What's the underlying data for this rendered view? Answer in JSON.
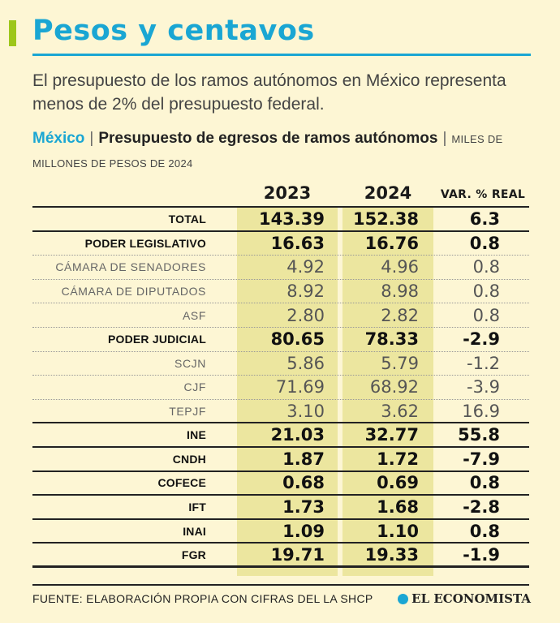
{
  "header": {
    "title": "Pesos y centavos",
    "subtitle": "El presupuesto de los ramos autónomos en México representa menos de 2% del presupuesto federal."
  },
  "chart_data": {
    "type": "table",
    "country": "México",
    "title": "Presupuesto de egresos de ramos autónomos",
    "units": "MILES DE MILLONES DE PESOS DE 2024",
    "columns": [
      "2023",
      "2024",
      "VAR. % REAL"
    ],
    "rows": [
      {
        "label": "TOTAL",
        "v2023": "143.39",
        "v2024": "152.38",
        "var": "6.3"
      },
      {
        "label": "PODER LEGISLATIVO",
        "v2023": "16.63",
        "v2024": "16.76",
        "var": "0.8"
      },
      {
        "label": "CÁMARA DE SENADORES",
        "v2023": "4.92",
        "v2024": "4.96",
        "var": "0.8"
      },
      {
        "label": "CÁMARA DE DIPUTADOS",
        "v2023": "8.92",
        "v2024": "8.98",
        "var": "0.8"
      },
      {
        "label": "ASF",
        "v2023": "2.80",
        "v2024": "2.82",
        "var": "0.8"
      },
      {
        "label": "PODER JUDICIAL",
        "v2023": "80.65",
        "v2024": "78.33",
        "var": "-2.9"
      },
      {
        "label": "SCJN",
        "v2023": "5.86",
        "v2024": "5.79",
        "var": "-1.2"
      },
      {
        "label": "CJF",
        "v2023": "71.69",
        "v2024": "68.92",
        "var": "-3.9"
      },
      {
        "label": "TEPJF",
        "v2023": "3.10",
        "v2024": "3.62",
        "var": "16.9"
      },
      {
        "label": "INE",
        "v2023": "21.03",
        "v2024": "32.77",
        "var": "55.8"
      },
      {
        "label": "CNDH",
        "v2023": "1.87",
        "v2024": "1.72",
        "var": "-7.9"
      },
      {
        "label": "COFECE",
        "v2023": "0.68",
        "v2024": "0.69",
        "var": "0.8"
      },
      {
        "label": "IFT",
        "v2023": "1.73",
        "v2024": "1.68",
        "var": "-2.8"
      },
      {
        "label": "INAI",
        "v2023": "1.09",
        "v2024": "1.10",
        "var": "0.8"
      },
      {
        "label": "FGR",
        "v2023": "19.71",
        "v2024": "19.33",
        "var": "-1.9"
      }
    ]
  },
  "footer": {
    "source": "FUENTE: ELABORACIÓN PROPIA CON CIFRAS DEL LA SHCP",
    "brand": "EL ECONOMISTA"
  },
  "colors": {
    "accent": "#1aa6d3",
    "bar": "#9dc61a",
    "background": "#fdf6d4",
    "highlight": "#ece69f"
  }
}
